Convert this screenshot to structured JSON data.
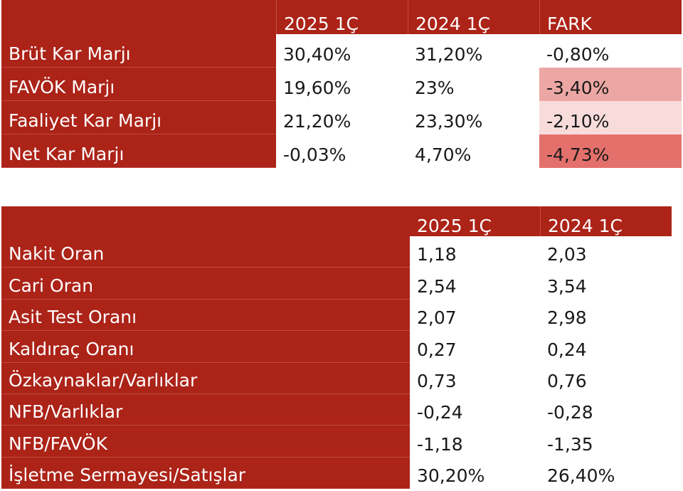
{
  "margin_table": {
    "header": [
      "",
      "2025 1Ç",
      "2024 1Ç",
      "FARK"
    ],
    "rows": [
      {
        "label": "Brüt Kar Marjı",
        "y2025": "30,40%",
        "y2024": "31,20%",
        "diff": "-0,80%"
      },
      {
        "label": "FAVÖK Marjı",
        "y2025": "19,60%",
        "y2024": "23%",
        "diff": "-3,40%"
      },
      {
        "label": "Faaliyet Kar Marjı",
        "y2025": "21,20%",
        "y2024": "23,30%",
        "diff": "-2,10%"
      },
      {
        "label": "Net Kar Marjı",
        "y2025": "-0,03%",
        "y2024": "4,70%",
        "diff": "-4,73%"
      }
    ],
    "diff_colors": [
      "#ffffff",
      "#eca7a4",
      "#f7dcdb",
      "#e4706c"
    ]
  },
  "ratio_table": {
    "header": [
      "",
      "2025 1Ç",
      "2024 1Ç"
    ],
    "rows": [
      {
        "label": "Nakit Oran",
        "y2025": "1,18",
        "y2024": "2,03"
      },
      {
        "label": "Cari Oran",
        "y2025": "2,54",
        "y2024": "3,54"
      },
      {
        "label": "Asit Test Oranı",
        "y2025": "2,07",
        "y2024": "2,98"
      },
      {
        "label": "Kaldıraç Oranı",
        "y2025": "0,27",
        "y2024": "0,24"
      },
      {
        "label": "Özkaynaklar/Varlıklar",
        "y2025": "0,73",
        "y2024": "0,76"
      },
      {
        "label": "NFB/Varlıklar",
        "y2025": "-0,24",
        "y2024": "-0,28"
      },
      {
        "label": "NFB/FAVÖK",
        "y2025": "-1,18",
        "y2024": "-1,35"
      },
      {
        "label": "İşletme Sermayesi/Satışlar",
        "y2025": "30,20%",
        "y2024": "26,40%"
      }
    ]
  },
  "colors": {
    "header_red": "#ac2318"
  }
}
